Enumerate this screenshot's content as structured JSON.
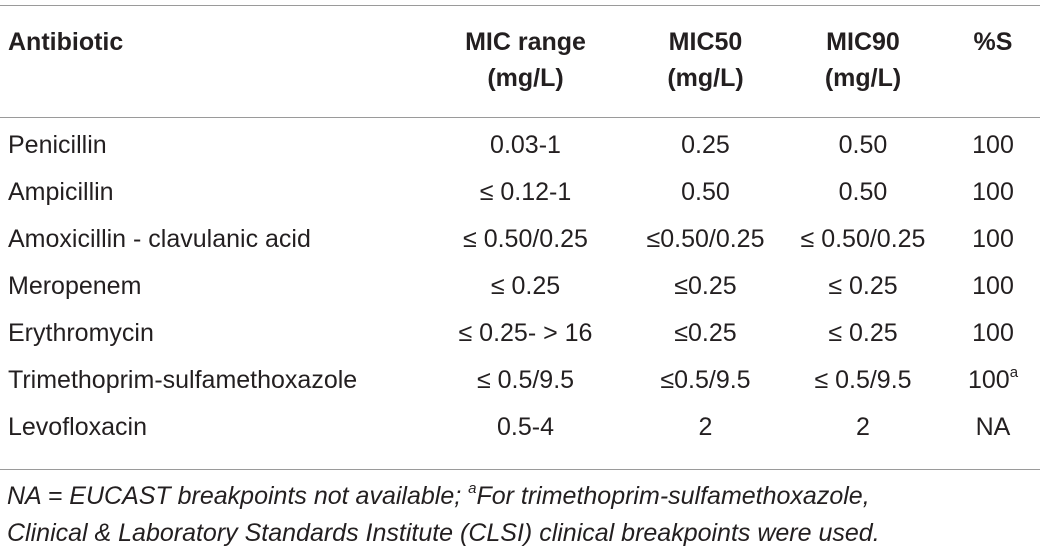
{
  "table": {
    "headers": [
      {
        "line1": "Antibiotic",
        "line2": ""
      },
      {
        "line1": "MIC range",
        "line2": "(mg/L)"
      },
      {
        "line1": "MIC50",
        "line2": "(mg/L)"
      },
      {
        "line1": "MIC90",
        "line2": "(mg/L)"
      },
      {
        "line1": "%S",
        "line2": ""
      }
    ],
    "rows": [
      {
        "antibiotic": "Penicillin",
        "mic_range": "0.03-1",
        "mic50": "0.25",
        "mic90": "0.50",
        "pct_s": "100",
        "pct_s_sup": ""
      },
      {
        "antibiotic": "Ampicillin",
        "mic_range": "≤ 0.12-1",
        "mic50": "0.50",
        "mic90": "0.50",
        "pct_s": "100",
        "pct_s_sup": ""
      },
      {
        "antibiotic": "Amoxicillin - clavulanic acid",
        "mic_range": "≤ 0.50/0.25",
        "mic50": "≤0.50/0.25",
        "mic90": "≤ 0.50/0.25",
        "pct_s": "100",
        "pct_s_sup": ""
      },
      {
        "antibiotic": "Meropenem",
        "mic_range": "≤ 0.25",
        "mic50": "≤0.25",
        "mic90": "≤ 0.25",
        "pct_s": "100",
        "pct_s_sup": ""
      },
      {
        "antibiotic": "Erythromycin",
        "mic_range": "≤ 0.25- > 16",
        "mic50": "≤0.25",
        "mic90": "≤ 0.25",
        "pct_s": "100",
        "pct_s_sup": ""
      },
      {
        "antibiotic": "Trimethoprim-sulfamethoxazole",
        "mic_range": "≤ 0.5/9.5",
        "mic50": "≤0.5/9.5",
        "mic90": "≤ 0.5/9.5",
        "pct_s": "100",
        "pct_s_sup": "a"
      },
      {
        "antibiotic": "Levofloxacin",
        "mic_range": "0.5-4",
        "mic50": "2",
        "mic90": "2",
        "pct_s": "NA",
        "pct_s_sup": ""
      }
    ]
  },
  "footnote": {
    "line1_prefix": "NA = EUCAST breakpoints not available; ",
    "line1_sup": "a",
    "line1_suffix": "For trimethoprim-sulfamethoxazole,",
    "line2": "Clinical & Laboratory Standards Institute (CLSI) clinical breakpoints were used."
  }
}
